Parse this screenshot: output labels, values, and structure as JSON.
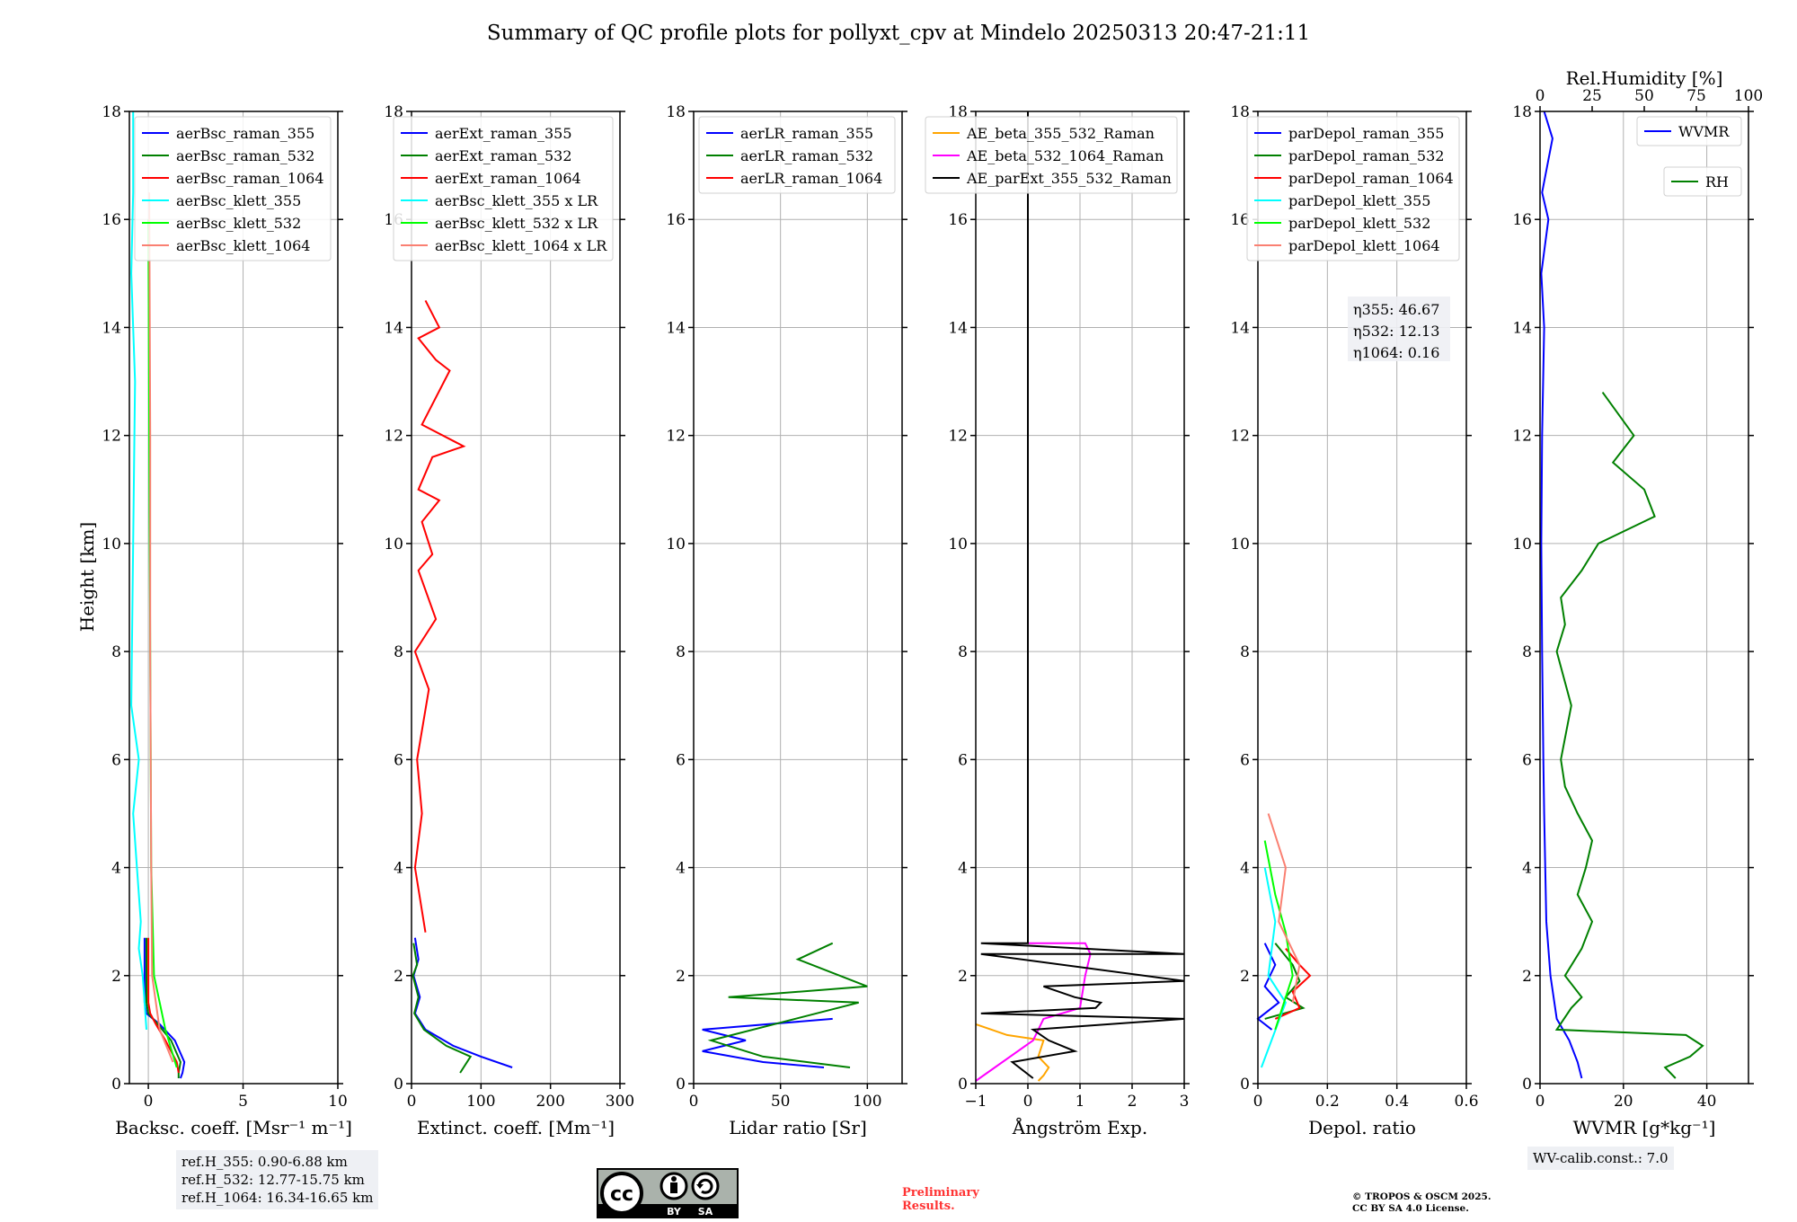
{
  "figure": {
    "title": "Summary of QC profile plots for pollyxt_cpv at Mindelo 20250313 20:47-21:11",
    "ylabel": "Height [km]",
    "ref_heights": [
      "ref.H_355: 0.90-6.88 km",
      "ref.H_532: 12.77-15.75 km",
      "ref.H_1064: 16.34-16.65 km"
    ],
    "wv_calib": "WV-calib.const.: 7.0",
    "preliminary": [
      "Preliminary",
      "Results."
    ],
    "copyright": [
      "© TROPOS & OSCM 2025.",
      "CC BY SA 4.0 License."
    ],
    "license_badge": [
      "cc",
      "BY",
      "SA"
    ],
    "icons": {
      "cc_logo": "cc-license-icon",
      "by": "attribution-icon",
      "sa": "share-alike-icon"
    }
  },
  "chart_data": [
    {
      "type": "line",
      "id": "bsc",
      "xlabel": "Backsc. coeff. [Msr⁻¹ m⁻¹]",
      "xlim": [
        -1,
        10
      ],
      "xticks": [
        0,
        5,
        10
      ],
      "ylim": [
        0,
        18
      ],
      "yticks": [
        0,
        2,
        4,
        6,
        8,
        10,
        12,
        14,
        16,
        18
      ],
      "legend": "top-right",
      "series": [
        {
          "name": "aerBsc_raman_355",
          "color": "#0000ff",
          "x": [
            -0.2,
            -0.2,
            -0.1,
            0.6,
            1.4,
            1.9,
            1.8,
            1.7
          ],
          "y": [
            2.7,
            1.5,
            1.3,
            1.1,
            0.8,
            0.4,
            0.2,
            0.1
          ]
        },
        {
          "name": "aerBsc_raman_532",
          "color": "#008000",
          "x": [
            -0.1,
            -0.1,
            0.0,
            0.5,
            1.2,
            1.7,
            1.6,
            1.6
          ],
          "y": [
            2.7,
            1.5,
            1.3,
            1.1,
            0.8,
            0.4,
            0.2,
            0.1
          ]
        },
        {
          "name": "aerBsc_raman_1064",
          "color": "#ff0000",
          "x": [
            0.0,
            0.0,
            0.1,
            0.4,
            0.9,
            1.5,
            1.6
          ],
          "y": [
            2.7,
            1.5,
            1.3,
            1.1,
            0.8,
            0.4,
            0.2
          ]
        },
        {
          "name": "aerBsc_klett_355",
          "color": "#00ffff",
          "x": [
            -0.8,
            -0.8,
            -0.9,
            -0.7,
            -0.9,
            -0.5,
            -0.8,
            -0.6,
            -0.4,
            -0.5,
            -0.3,
            -0.1
          ],
          "y": [
            18.0,
            16.5,
            15.0,
            13.0,
            7.0,
            6.0,
            5.0,
            4.0,
            3.0,
            2.5,
            2.0,
            1.0
          ]
        },
        {
          "name": "aerBsc_klett_532",
          "color": "#00ff00",
          "x": [
            0.0,
            0.05,
            0.1,
            0.15,
            0.3,
            0.9,
            1.5
          ],
          "y": [
            16.0,
            12.0,
            8.0,
            4.0,
            2.0,
            1.0,
            0.3
          ]
        },
        {
          "name": "aerBsc_klett_1064",
          "color": "#fa8072",
          "x": [
            0.05,
            0.1,
            0.1,
            0.15,
            0.2,
            0.6,
            1.3
          ],
          "y": [
            16.5,
            12.0,
            8.0,
            4.0,
            2.0,
            1.0,
            0.4
          ]
        }
      ]
    },
    {
      "type": "line",
      "id": "ext",
      "xlabel": "Extinct. coeff. [Mm⁻¹]",
      "xlim": [
        0,
        300
      ],
      "xticks": [
        0,
        100,
        200,
        300
      ],
      "ylim": [
        0,
        18
      ],
      "yticks": [
        0,
        2,
        4,
        6,
        8,
        10,
        12,
        14,
        16,
        18
      ],
      "legend": "top-right",
      "series": [
        {
          "name": "aerExt_raman_355",
          "color": "#0000ff",
          "x": [
            5,
            10,
            3,
            12,
            5,
            20,
            60,
            100,
            145
          ],
          "y": [
            2.7,
            2.3,
            2.0,
            1.6,
            1.3,
            1.0,
            0.7,
            0.5,
            0.3
          ]
        },
        {
          "name": "aerExt_raman_532",
          "color": "#008000",
          "x": [
            3,
            8,
            2,
            10,
            4,
            18,
            50,
            85,
            70
          ],
          "y": [
            2.6,
            2.2,
            2.0,
            1.6,
            1.3,
            1.0,
            0.7,
            0.5,
            0.2
          ]
        },
        {
          "name": "aerExt_raman_1064",
          "color": "#ff0000",
          "x": [
            20,
            40,
            10,
            35,
            55,
            15,
            75,
            30,
            10,
            40,
            15,
            30,
            10,
            35,
            5,
            25,
            8,
            15,
            5,
            20
          ],
          "y": [
            14.5,
            14.0,
            13.8,
            13.4,
            13.2,
            12.2,
            11.8,
            11.6,
            11.0,
            10.8,
            10.4,
            9.8,
            9.5,
            8.6,
            8.0,
            7.3,
            6.0,
            5.0,
            4.0,
            2.8
          ]
        },
        {
          "name": "aerBsc_klett_355 x LR",
          "color": "#00ffff",
          "x": [],
          "y": []
        },
        {
          "name": "aerBsc_klett_532 x LR",
          "color": "#00ff00",
          "x": [],
          "y": []
        },
        {
          "name": "aerBsc_klett_1064 x LR",
          "color": "#fa8072",
          "x": [],
          "y": []
        }
      ]
    },
    {
      "type": "line",
      "id": "lr",
      "xlabel": "Lidar ratio [Sr]",
      "xlim": [
        0,
        120
      ],
      "xticks": [
        0,
        50,
        100
      ],
      "ylim": [
        0,
        18
      ],
      "yticks": [
        0,
        2,
        4,
        6,
        8,
        10,
        12,
        14,
        16,
        18
      ],
      "legend": "top-right",
      "series": [
        {
          "name": "aerLR_raman_355",
          "color": "#0000ff",
          "x": [
            80,
            5,
            30,
            5,
            40,
            75
          ],
          "y": [
            1.2,
            1.0,
            0.8,
            0.6,
            0.4,
            0.3
          ]
        },
        {
          "name": "aerLR_raman_532",
          "color": "#008000",
          "x": [
            80,
            60,
            100,
            20,
            95,
            10,
            40,
            90
          ],
          "y": [
            2.6,
            2.3,
            1.8,
            1.6,
            1.5,
            0.8,
            0.5,
            0.3
          ]
        },
        {
          "name": "aerLR_raman_1064",
          "color": "#ff0000",
          "x": [],
          "y": []
        }
      ]
    },
    {
      "type": "line",
      "id": "ae",
      "xlabel": "Ångström Exp.",
      "xlim": [
        -1,
        3
      ],
      "xticks": [
        -1,
        0,
        1,
        2,
        3
      ],
      "ylim": [
        0,
        18
      ],
      "yticks": [
        0,
        2,
        4,
        6,
        8,
        10,
        12,
        14,
        16,
        18
      ],
      "legend": "top-right",
      "series": [
        {
          "name": "AE_beta_355_532_Raman",
          "color": "#ffa500",
          "x": [
            -1.0,
            -0.4,
            0.3,
            0.2,
            0.4,
            0.3,
            0.2
          ],
          "y": [
            1.1,
            0.9,
            0.8,
            0.5,
            0.3,
            0.15,
            0.05
          ]
        },
        {
          "name": "AE_beta_532_1064_Raman",
          "color": "#ff00ff",
          "x": [
            0.0,
            1.1,
            1.2,
            1.1,
            1.0,
            0.3,
            0.1,
            -1.0
          ],
          "y": [
            2.6,
            2.6,
            2.4,
            2.0,
            1.4,
            1.2,
            0.8,
            0.05
          ]
        },
        {
          "name": "AE_parExt_355_532_Raman",
          "color": "#000000",
          "x": [
            0.0,
            0.0,
            -0.9,
            3.0,
            -0.9,
            3.0,
            0.3,
            0.9,
            1.4,
            1.3,
            -0.9,
            3.0,
            0.1,
            0.4,
            0.9,
            -0.3,
            0.1
          ],
          "y": [
            18.0,
            2.6,
            2.6,
            2.4,
            2.4,
            1.9,
            1.8,
            1.6,
            1.5,
            1.4,
            1.3,
            1.2,
            1.0,
            0.8,
            0.6,
            0.4,
            0.1
          ]
        }
      ]
    },
    {
      "type": "line",
      "id": "depol",
      "xlabel": "Depol. ratio",
      "xlim": [
        0,
        0.6
      ],
      "xticks": [
        0.0,
        0.2,
        0.4,
        0.6
      ],
      "ylim": [
        0,
        18
      ],
      "yticks": [
        0,
        2,
        4,
        6,
        8,
        10,
        12,
        14,
        16,
        18
      ],
      "legend": "top-right",
      "annotations": [
        {
          "label": "η355",
          "value": "46.67"
        },
        {
          "label": "η532",
          "value": "12.13"
        },
        {
          "label": "η1064",
          "value": "0.16"
        }
      ],
      "series": [
        {
          "name": "parDepol_raman_355",
          "color": "#0000ff",
          "x": [
            0.02,
            0.05,
            0.02,
            0.06,
            0.0,
            0.04
          ],
          "y": [
            2.6,
            2.2,
            1.8,
            1.5,
            1.2,
            1.0
          ]
        },
        {
          "name": "parDepol_raman_532",
          "color": "#008000",
          "x": [
            0.05,
            0.1,
            0.12,
            0.08,
            0.13,
            0.02
          ],
          "y": [
            2.6,
            2.2,
            1.9,
            1.6,
            1.4,
            1.2
          ]
        },
        {
          "name": "parDepol_raman_1064",
          "color": "#ff0000",
          "x": [
            0.08,
            0.12,
            0.15,
            0.1,
            0.12,
            0.05
          ],
          "y": [
            2.5,
            2.2,
            2.0,
            1.7,
            1.4,
            1.2
          ]
        },
        {
          "name": "parDepol_klett_355",
          "color": "#00ffff",
          "x": [
            0.02,
            0.05,
            0.03,
            0.08,
            0.01
          ],
          "y": [
            4.0,
            3.0,
            2.0,
            1.5,
            0.3
          ]
        },
        {
          "name": "parDepol_klett_532",
          "color": "#00ff00",
          "x": [
            0.02,
            0.05,
            0.08,
            0.1,
            0.05
          ],
          "y": [
            4.5,
            3.5,
            2.8,
            2.0,
            1.0
          ]
        },
        {
          "name": "parDepol_klett_1064",
          "color": "#fa8072",
          "x": [
            0.03,
            0.08,
            0.06,
            0.12,
            0.1
          ],
          "y": [
            5.0,
            4.0,
            3.0,
            2.2,
            1.5
          ]
        }
      ]
    },
    {
      "type": "line",
      "id": "wv",
      "xlabel": "WVMR [g*kg⁻¹]",
      "xlim": [
        0,
        50
      ],
      "xticks": [
        0,
        20,
        40
      ],
      "x2label": "Rel.Humidity [%]",
      "x2lim": [
        0,
        100
      ],
      "x2ticks": [
        0,
        25,
        50,
        75,
        100
      ],
      "ylim": [
        0,
        18
      ],
      "yticks": [
        0,
        2,
        4,
        6,
        8,
        10,
        12,
        14,
        16,
        18
      ],
      "legend": "top-right",
      "series": [
        {
          "name": "WVMR",
          "color": "#0000ff",
          "x": [
            1,
            3,
            0.5,
            2,
            0.3,
            1,
            0.5,
            0.3,
            0.5,
            0.8,
            1.0,
            1.5,
            2.5,
            4,
            7,
            9,
            10
          ],
          "y": [
            18.0,
            17.5,
            16.5,
            16.0,
            15.0,
            14.0,
            12.0,
            10.0,
            8.0,
            6.0,
            5.0,
            3.0,
            2.0,
            1.2,
            0.8,
            0.4,
            0.1
          ]
        },
        {
          "name": "RH",
          "color": "#008000",
          "x2": [
            30,
            45,
            35,
            50,
            55,
            28,
            20,
            10,
            12,
            8,
            15,
            10,
            12,
            18,
            25,
            22,
            18,
            25,
            20,
            12,
            20,
            15,
            8,
            70,
            78,
            72,
            60,
            65
          ],
          "y": [
            12.8,
            12.0,
            11.5,
            11.0,
            10.5,
            10.0,
            9.5,
            9.0,
            8.5,
            8.0,
            7.0,
            6.0,
            5.5,
            5.0,
            4.5,
            4.0,
            3.5,
            3.0,
            2.5,
            2.0,
            1.6,
            1.4,
            1.0,
            0.9,
            0.7,
            0.5,
            0.3,
            0.1
          ]
        }
      ]
    }
  ]
}
